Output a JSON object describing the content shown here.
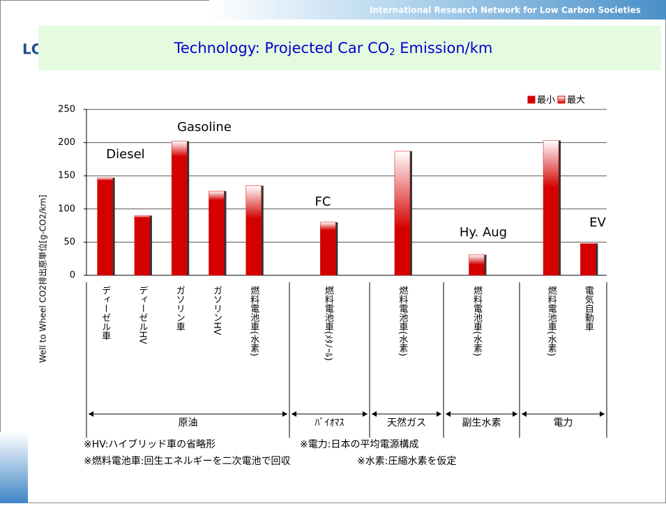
{
  "header": {
    "network": "International Research Network for Low Carbon Societies",
    "logo": "LC"
  },
  "chart_data": {
    "type": "stacked_bar",
    "title": [
      "Technology: Projected Car CO",
      "2",
      " Emission/km"
    ],
    "y_label": "Well to Wheel CO2排出原単位[g-CO2/km]",
    "categories": [
      "ディーゼル車",
      "ディーゼルHV",
      "ガソリン車",
      "ガソリンHV",
      "燃料電池車(水素)",
      null,
      "燃料電池車(ﾒﾀﾉｰﾙ)",
      null,
      "燃料電池車(水素)",
      null,
      "燃料電池車(水素)",
      null,
      "燃料電池車(水素)",
      "電気自動車"
    ],
    "series": [
      {
        "name": "最小",
        "color": "#d40000",
        "values": [
          143,
          87,
          179,
          113,
          85,
          null,
          68,
          null,
          70,
          null,
          16,
          null,
          132,
          47
        ]
      },
      {
        "name": "最大",
        "color": "#d40000",
        "values": [
          4,
          3,
          23,
          14,
          50,
          null,
          12,
          null,
          117,
          null,
          15,
          null,
          71,
          1
        ]
      }
    ],
    "ylim": [
      0,
      250
    ],
    "yticks": [
      0,
      50,
      100,
      150,
      200,
      250
    ],
    "grid": true,
    "legend": "top-right",
    "groups": [
      "原油",
      "ﾊﾞｲｵﾏｽ",
      "天然ガス",
      "副生水素",
      "電力"
    ],
    "annotations": [
      "Diesel",
      "Gasoline",
      "FC",
      "Hy. Aug",
      "EV"
    ],
    "notes": [
      "※HV:ハイブリッド車の省略形",
      "※電力:日本の平均電源構成",
      "※燃料電池車:回生エネルギーを二次電池で回収",
      "※水素:圧縮水素を仮定"
    ]
  }
}
